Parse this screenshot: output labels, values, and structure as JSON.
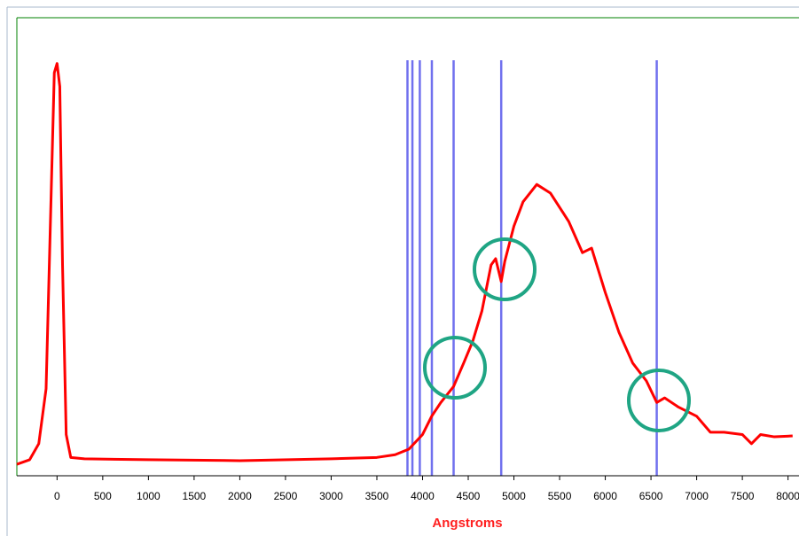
{
  "chart_data": {
    "type": "line",
    "xlabel": "Angstroms",
    "xlim": [
      -440,
      8120
    ],
    "xticks": [
      0,
      500,
      1000,
      1500,
      2000,
      2500,
      3000,
      3500,
      4000,
      4500,
      5000,
      5500,
      6000,
      6500,
      7000,
      7500,
      8000
    ],
    "ylim": [
      0,
      100
    ],
    "series": [
      {
        "color": "#ff0000",
        "x": [
          -440,
          -300,
          -200,
          -120,
          -60,
          -30,
          0,
          30,
          60,
          100,
          150,
          300,
          1000,
          2000,
          3000,
          3500,
          3700,
          3850,
          4000,
          4100,
          4200,
          4340,
          4450,
          4550,
          4650,
          4750,
          4800,
          4861,
          4900,
          5000,
          5100,
          5250,
          5400,
          5600,
          5750,
          5850,
          6000,
          6150,
          6300,
          6450,
          6563,
          6650,
          6800,
          7000,
          7150,
          7300,
          7500,
          7600,
          7700,
          7850,
          8050
        ],
        "values": [
          2.5,
          3.5,
          7,
          19,
          65,
          88,
          90,
          85,
          46,
          9,
          4,
          3.7,
          3.5,
          3.3,
          3.7,
          4,
          4.6,
          5.8,
          9,
          13,
          16,
          19.5,
          24.6,
          29.4,
          36,
          46,
          47.4,
          42.4,
          46.8,
          54.5,
          59.8,
          63.6,
          61.7,
          55.5,
          48.7,
          49.7,
          40,
          31.3,
          24.6,
          20.7,
          16,
          17,
          15,
          13,
          9.5,
          9.5,
          9,
          7,
          9,
          8.5,
          8.7
        ]
      }
    ],
    "reference_lines": {
      "color": "#7070ee",
      "x": [
        3835,
        3889,
        3970,
        4102,
        4340,
        4861,
        6563
      ]
    }
  }
}
